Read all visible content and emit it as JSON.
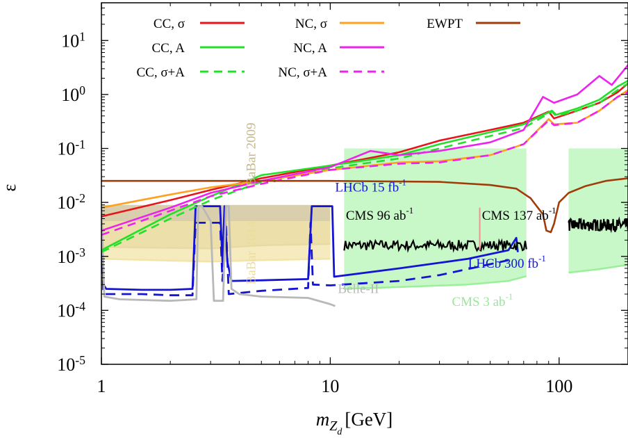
{
  "chart_data": {
    "type": "line",
    "xlabel": {
      "base": "m",
      "sub": "Z",
      "subsub": "d",
      "unit": "[GeV]"
    },
    "ylabel": "ε",
    "xscale": "log",
    "yscale": "log",
    "xlim": [
      1,
      200
    ],
    "ylim": [
      1e-05,
      50
    ],
    "grid": false,
    "legend_position": "top",
    "x_tick_labels": [
      "1",
      "10",
      "100"
    ],
    "y_tick_labels": [
      {
        "base": "10",
        "exp": "-5"
      },
      {
        "base": "10",
        "exp": "-4"
      },
      {
        "base": "10",
        "exp": "-3"
      },
      {
        "base": "10",
        "exp": "-2"
      },
      {
        "base": "10",
        "exp": "-1"
      },
      {
        "base": "10",
        "exp": "0"
      },
      {
        "base": "10",
        "exp": "1"
      }
    ],
    "series": [
      {
        "name": "CC, σ",
        "color": "#e8141c",
        "dash": "solid",
        "points": [
          [
            1,
            0.0055
          ],
          [
            2,
            0.011
          ],
          [
            3,
            0.017
          ],
          [
            5,
            0.028
          ],
          [
            10,
            0.048
          ],
          [
            20,
            0.085
          ],
          [
            30,
            0.14
          ],
          [
            50,
            0.22
          ],
          [
            70,
            0.3
          ],
          [
            90,
            0.48
          ],
          [
            95,
            0.36
          ],
          [
            120,
            0.5
          ],
          [
            150,
            0.7
          ],
          [
            180,
            1.1
          ],
          [
            200,
            1.6
          ]
        ]
      },
      {
        "name": "CC, A",
        "color": "#22e028",
        "dash": "solid",
        "points": [
          [
            1,
            0.0013
          ],
          [
            2,
            0.006
          ],
          [
            3,
            0.013
          ],
          [
            5,
            0.032
          ],
          [
            10,
            0.048
          ],
          [
            20,
            0.075
          ],
          [
            30,
            0.12
          ],
          [
            50,
            0.2
          ],
          [
            70,
            0.28
          ],
          [
            93,
            0.5
          ],
          [
            97,
            0.42
          ],
          [
            120,
            0.55
          ],
          [
            150,
            0.8
          ],
          [
            180,
            1.4
          ],
          [
            200,
            1.8
          ]
        ]
      },
      {
        "name": "CC, σ+A",
        "color": "#22e028",
        "dash": "dashed",
        "points": [
          [
            1,
            0.0012
          ],
          [
            2,
            0.005
          ],
          [
            3,
            0.011
          ],
          [
            5,
            0.024
          ],
          [
            10,
            0.043
          ],
          [
            20,
            0.065
          ],
          [
            30,
            0.1
          ],
          [
            50,
            0.17
          ],
          [
            70,
            0.24
          ],
          [
            93,
            0.48
          ],
          [
            97,
            0.4
          ],
          [
            120,
            0.5
          ],
          [
            150,
            0.7
          ],
          [
            180,
            1.2
          ],
          [
            200,
            1.6
          ]
        ]
      },
      {
        "name": "NC, σ",
        "color": "#ffa01e",
        "dash": "solid",
        "points": [
          [
            1,
            0.008
          ],
          [
            2,
            0.014
          ],
          [
            3,
            0.019
          ],
          [
            5,
            0.025
          ],
          [
            10,
            0.04
          ],
          [
            20,
            0.055
          ],
          [
            30,
            0.058
          ],
          [
            50,
            0.075
          ],
          [
            70,
            0.12
          ],
          [
            90,
            0.35
          ],
          [
            95,
            0.28
          ],
          [
            120,
            0.3
          ],
          [
            150,
            0.5
          ],
          [
            180,
            0.9
          ],
          [
            200,
            1.2
          ]
        ]
      },
      {
        "name": "NC, A",
        "color": "#ee22ee",
        "dash": "solid",
        "points": [
          [
            1,
            0.003
          ],
          [
            2,
            0.008
          ],
          [
            3,
            0.015
          ],
          [
            5,
            0.025
          ],
          [
            10,
            0.045
          ],
          [
            15,
            0.09
          ],
          [
            20,
            0.075
          ],
          [
            30,
            0.09
          ],
          [
            50,
            0.13
          ],
          [
            70,
            0.22
          ],
          [
            85,
            0.9
          ],
          [
            95,
            0.7
          ],
          [
            120,
            1.0
          ],
          [
            150,
            2.2
          ],
          [
            170,
            1.5
          ],
          [
            200,
            3.5
          ]
        ]
      },
      {
        "name": "NC, σ+A",
        "color": "#ee22ee",
        "dash": "dashed",
        "points": [
          [
            1,
            0.0025
          ],
          [
            2,
            0.007
          ],
          [
            3,
            0.013
          ],
          [
            5,
            0.022
          ],
          [
            10,
            0.04
          ],
          [
            20,
            0.052
          ],
          [
            30,
            0.055
          ],
          [
            50,
            0.075
          ],
          [
            70,
            0.12
          ],
          [
            90,
            0.33
          ],
          [
            95,
            0.27
          ],
          [
            120,
            0.3
          ],
          [
            150,
            0.5
          ],
          [
            180,
            0.9
          ],
          [
            200,
            1.1
          ]
        ]
      },
      {
        "name": "EWPT",
        "color": "#a03c0a",
        "dash": "solid",
        "points": [
          [
            1,
            0.025
          ],
          [
            5,
            0.025
          ],
          [
            10,
            0.025
          ],
          [
            30,
            0.024
          ],
          [
            50,
            0.021
          ],
          [
            65,
            0.018
          ],
          [
            75,
            0.012
          ],
          [
            85,
            0.006
          ],
          [
            88,
            0.003
          ],
          [
            92,
            0.0028
          ],
          [
            95,
            0.004
          ],
          [
            100,
            0.01
          ],
          [
            110,
            0.015
          ],
          [
            130,
            0.02
          ],
          [
            160,
            0.025
          ],
          [
            200,
            0.028
          ]
        ]
      }
    ],
    "regions": [
      {
        "label": "BaBar 2009",
        "color": "#ccbf90",
        "opacity": 0.75,
        "upper": [
          [
            1,
            0.009
          ],
          [
            10,
            0.009
          ]
        ],
        "lower": [
          [
            1,
            0.0015
          ],
          [
            3,
            0.0014
          ],
          [
            5,
            0.0016
          ],
          [
            10,
            0.0017
          ]
        ]
      },
      {
        "label": "BaBar 2014",
        "color": "#f2e4a8",
        "opacity": 0.75,
        "upper": [
          [
            1,
            0.0045
          ],
          [
            10,
            0.0045
          ]
        ],
        "lower": [
          [
            1,
            0.0009
          ],
          [
            3,
            0.0008
          ],
          [
            5,
            0.00085
          ],
          [
            10,
            0.0009
          ]
        ]
      },
      {
        "label": "CMS 3 ab⁻¹",
        "color": "#9af09a",
        "opacity": 0.55,
        "upper": [
          [
            11.5,
            0.1
          ],
          [
            72,
            0.1
          ]
        ],
        "lower": [
          [
            11.5,
            0.00025
          ],
          [
            20,
            0.00027
          ],
          [
            40,
            0.0003
          ],
          [
            60,
            0.00035
          ],
          [
            72,
            0.00043
          ]
        ]
      },
      {
        "label": "",
        "color": "#9af09a",
        "opacity": 0.55,
        "upper": [
          [
            110,
            0.1
          ],
          [
            200,
            0.1
          ]
        ],
        "lower": [
          [
            110,
            0.0005
          ],
          [
            150,
            0.00058
          ],
          [
            200,
            0.0007
          ]
        ]
      }
    ],
    "limit_curves": [
      {
        "label": "LHCb 15 fb⁻¹",
        "color": "#1414d2",
        "dash": "solid",
        "points": [
          [
            1,
            0.008
          ],
          [
            1.02,
            0.0003
          ],
          [
            1.05,
            0.00025
          ],
          [
            1.5,
            0.00024
          ],
          [
            2,
            0.00024
          ],
          [
            2.5,
            0.00025
          ],
          [
            2.58,
            0.0085
          ],
          [
            2.7,
            0.0085
          ],
          [
            3.3,
            0.0085
          ],
          [
            3.38,
            0.0008
          ],
          [
            3.45,
            0.0085
          ],
          [
            3.55,
            0.0008
          ],
          [
            3.7,
            0.00035
          ],
          [
            5,
            0.00036
          ],
          [
            8,
            0.00038
          ],
          [
            8.3,
            0.0085
          ],
          [
            10.2,
            0.0085
          ],
          [
            10.4,
            0.00042
          ],
          [
            20,
            0.0006
          ],
          [
            40,
            0.0009
          ],
          [
            60,
            0.0013
          ],
          [
            65,
            0.0022
          ],
          [
            66,
            0.0012
          ]
        ]
      },
      {
        "label": "LHCb 300 fb⁻¹",
        "color": "#1414d2",
        "dash": "dashed",
        "points": [
          [
            1,
            0.0055
          ],
          [
            1.02,
            0.0002
          ],
          [
            1.5,
            0.0002
          ],
          [
            2,
            0.00019
          ],
          [
            2.5,
            0.00019
          ],
          [
            2.58,
            0.0042
          ],
          [
            2.65,
            0.0042
          ],
          [
            3.3,
            0.0042
          ],
          [
            3.38,
            0.00035
          ],
          [
            3.5,
            0.0042
          ],
          [
            3.6,
            0.0002
          ],
          [
            5,
            0.00023
          ],
          [
            8,
            0.00026
          ],
          [
            8.2,
            0.0042
          ],
          [
            8.4,
            0.0003
          ],
          [
            10,
            0.00029
          ],
          [
            20,
            0.00035
          ],
          [
            30,
            0.00045
          ],
          [
            45,
            0.00065
          ],
          [
            60,
            0.00085
          ]
        ]
      },
      {
        "label": "Belle-II",
        "color": "#b8b8b8",
        "dash": "solid",
        "points": [
          [
            1,
            0.0085
          ],
          [
            1.03,
            0.00018
          ],
          [
            1.2,
            0.00016
          ],
          [
            2,
            0.00015
          ],
          [
            2.6,
            0.00016
          ],
          [
            2.65,
            0.0085
          ],
          [
            2.75,
            0.0085
          ],
          [
            3.0,
            0.0045
          ],
          [
            3.1,
            0.00015
          ],
          [
            3.4,
            0.00015
          ],
          [
            3.5,
            0.0085
          ],
          [
            3.6,
            0.0085
          ],
          [
            3.7,
            0.00025
          ],
          [
            4,
            0.0002
          ],
          [
            5,
            0.00018
          ],
          [
            8,
            0.00017
          ],
          [
            10,
            0.00013
          ],
          [
            10.5,
            0.00012
          ]
        ]
      }
    ],
    "noisy_curves": [
      {
        "label": "CMS 96 ab⁻¹",
        "color": "#000000",
        "x_range": [
          11.5,
          72
        ],
        "center": 0.0016,
        "scatter": 1.25
      },
      {
        "label": "CMS 137 ab⁻¹",
        "color": "#000000",
        "x_range": [
          110,
          200
        ],
        "center": 0.0038,
        "scatter": 1.3
      }
    ],
    "markers": [
      {
        "x": 45,
        "y_range": [
          0.0013,
          0.008
        ],
        "color": "#f09090"
      }
    ],
    "annotations": [
      {
        "text": "BaBar 2009",
        "color": "#c4b888",
        "x": 4.7,
        "y": 0.02,
        "rotate": -90
      },
      {
        "text": "BaBar 2014",
        "color": "#ecdc9e",
        "x": 4.7,
        "y": 0.0003,
        "rotate": -90
      },
      {
        "text": "LHCb 15 fb",
        "sup": "-1",
        "color": "#1414d2",
        "x": 10.5,
        "y": 0.016
      },
      {
        "text": "CMS 96 ab",
        "sup": "-1",
        "color": "#000000",
        "x": 11.7,
        "y": 0.0048
      },
      {
        "text": "CMS 137 ab",
        "sup": "-1",
        "color": "#000000",
        "x": 46,
        "y": 0.0048
      },
      {
        "text": "LHCb 300 fb",
        "sup": "-1",
        "color": "#1414d2",
        "x": 40,
        "y": 0.00062
      },
      {
        "text": "Belle-II",
        "color": "#b8b8b8",
        "x": 10.8,
        "y": 0.00021
      },
      {
        "text": "CMS 3 ab",
        "sup": "-1",
        "color": "#9ae69a",
        "x": 34,
        "y": 0.00012
      }
    ]
  }
}
